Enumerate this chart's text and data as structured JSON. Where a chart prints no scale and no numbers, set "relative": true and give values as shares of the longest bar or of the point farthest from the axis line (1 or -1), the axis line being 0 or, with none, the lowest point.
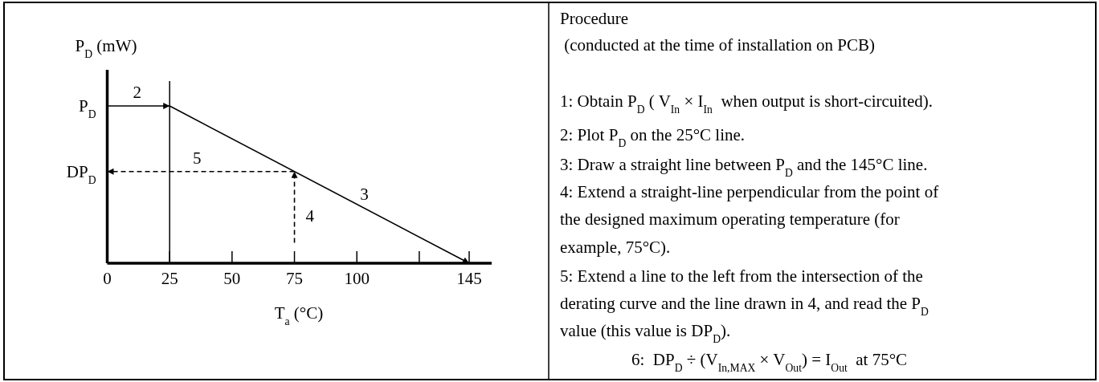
{
  "chart_data": {
    "type": "line",
    "relative": true,
    "xlabel": "T$_{a}$ (°C)",
    "ylabel": "P$_{D}$ (mW)",
    "xlim": [
      0,
      154
    ],
    "xticks": [
      0,
      25,
      50,
      75,
      100,
      {
        "value": 125,
        "label": null
      },
      145
    ],
    "grid": false,
    "series": [
      {
        "x": [
          25,
          145
        ],
        "values": [
          1,
          0
        ],
        "color": "#000000",
        "line_style": "solid"
      },
      {
        "x": [
          0,
          25
        ],
        "values": [
          1,
          1
        ],
        "color": "#000000",
        "line_style": "solid"
      },
      {
        "x": [
          75,
          75
        ],
        "values": [
          0.13,
          0.583
        ],
        "color": "#000000",
        "line_style": "dashed"
      },
      {
        "x": [
          75,
          0
        ],
        "values": [
          0.583,
          0.583
        ],
        "color": "#000000",
        "line_style": "dashed"
      }
    ],
    "ref_lines": [
      {
        "axis": "x",
        "value": 25,
        "color": "#000000",
        "line_style": "solid"
      }
    ],
    "annotations": [
      {
        "text": "P$_{D}$",
        "x": 0,
        "y": 1
      },
      {
        "text": "DP$_{D}$",
        "x": 0,
        "y": 0.583
      },
      {
        "text": "2",
        "x": 12,
        "y": 1
      },
      {
        "text": "5",
        "x": 36,
        "y": 0.583
      },
      {
        "text": "3",
        "x": 103,
        "y": 0.35
      },
      {
        "text": "4",
        "x": 75,
        "y": 0.3
      },
      "Procedure",
      " (conducted at the time of installation on PCB)",
      "1: Obtain P$_{D}$ ( V$_{In}$ × I$_{In}$  when output is short-circuited).",
      "2: Plot P$_{D}$ on the 25°C line.",
      "3: Draw a straight line between P$_{D}$ and the 145°C line.",
      "4: Extend a straight-line perpendicular from the point of",
      "the designed maximum operating temperature (for",
      "example, 75°C).",
      "5: Extend a line to the left from the intersection of the",
      "derating curve and the line drawn in 4, and read the P$_{D}$",
      "value (this value is DP$_{D}$).",
      "6:  DP$_{D}$ ÷ (V$_{In,MAX}$ × V$_{Out}$) = I$_{Out}$  at 75°C"
    ]
  }
}
